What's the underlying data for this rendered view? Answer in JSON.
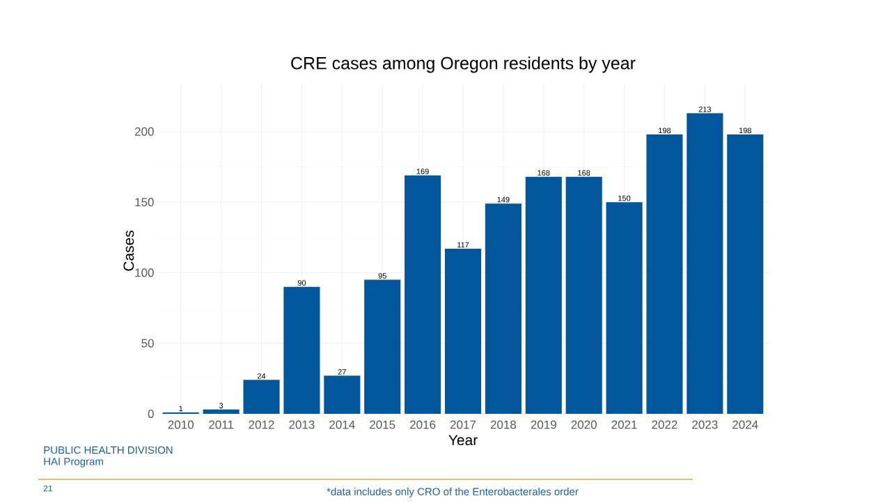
{
  "chart_data": {
    "type": "bar",
    "title": "CRE cases among Oregon residents by year",
    "xlabel": "Year",
    "ylabel": "Cases",
    "categories": [
      "2010",
      "2011",
      "2012",
      "2013",
      "2014",
      "2015",
      "2016",
      "2017",
      "2018",
      "2019",
      "2020",
      "2021",
      "2022",
      "2023",
      "2024"
    ],
    "values": [
      1,
      3,
      24,
      90,
      27,
      95,
      169,
      117,
      149,
      168,
      168,
      150,
      198,
      213,
      198
    ],
    "color": "#02569b",
    "ylim": [
      -3,
      234
    ],
    "yticks": [
      0,
      50,
      100,
      150,
      200
    ],
    "grid": true,
    "data_labels": true,
    "annotations": [
      "PUBLIC HEALTH DIVISION",
      "HAI Program",
      "21",
      "*data includes only CRO of the Enterobacterales order"
    ]
  }
}
